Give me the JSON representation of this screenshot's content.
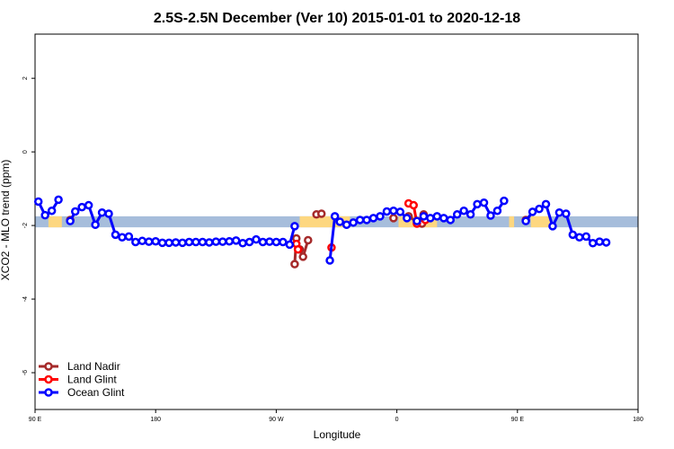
{
  "chart_data": {
    "type": "line",
    "title": "2.5S-2.5N December (Ver 10)   2015-01-01 to 2020-12-18",
    "xlabel": "Longitude",
    "ylabel": "XCO2 - MLO trend (ppm)",
    "xlim": [
      90,
      450
    ],
    "ylim": [
      -7,
      3.2
    ],
    "x_ticks": [
      {
        "value": 90,
        "label": "90 E"
      },
      {
        "value": 162,
        "label": "180"
      },
      {
        "value": 234,
        "label": "90 W"
      },
      {
        "value": 306,
        "label": "0"
      },
      {
        "value": 378,
        "label": "90 E"
      },
      {
        "value": 450,
        "label": "180"
      }
    ],
    "y_ticks": [
      {
        "value": 2,
        "label": "2"
      },
      {
        "value": 0,
        "label": "0"
      },
      {
        "value": -2,
        "label": "-2"
      },
      {
        "value": -4,
        "label": "-4"
      },
      {
        "value": -6,
        "label": "-6"
      }
    ],
    "band": {
      "y_min": -2.05,
      "y_max": -1.75,
      "ocean_color": "#a6bddb",
      "land_color": "#fdd780",
      "land_segments": [
        [
          98,
          106
        ],
        [
          248,
          278
        ],
        [
          307,
          330
        ],
        [
          373,
          376
        ],
        [
          386,
          398
        ]
      ]
    },
    "legend": {
      "position": "bottom-left",
      "entries": [
        "Land Nadir",
        "Land Glint",
        "Ocean Glint"
      ]
    },
    "series": [
      {
        "name": "Land Nadir",
        "color": "#a52a2a",
        "segments": [
          [
            [
              111,
              -1.85
            ]
          ],
          [
            [
              245,
              -3.05
            ],
            [
              246,
              -2.35
            ],
            [
              248,
              -2.65
            ],
            [
              250,
              -2.85
            ],
            [
              253,
              -2.4
            ]
          ],
          [
            [
              258,
              -1.7
            ],
            [
              261,
              -1.68
            ]
          ],
          [
            [
              304,
              -1.8
            ]
          ],
          [
            [
              313,
              -1.75
            ],
            [
              318,
              -1.9
            ],
            [
              321,
              -1.95
            ],
            [
              322,
              -1.7
            ]
          ],
          [
            [
              383,
              -1.85
            ]
          ]
        ]
      },
      {
        "name": "Land Glint",
        "color": "#ff0000",
        "segments": [
          [
            [
              246,
              -2.5
            ],
            [
              247,
              -2.65
            ]
          ],
          [
            [
              313,
              -1.4
            ],
            [
              316,
              -1.45
            ],
            [
              318,
              -1.95
            ]
          ],
          [
            [
              322,
              -1.75
            ],
            [
              323,
              -1.85
            ]
          ],
          [
            [
              267,
              -2.6
            ]
          ]
        ]
      },
      {
        "name": "Ocean Glint",
        "color": "#0000ff",
        "segments": [
          [
            [
              92,
              -1.35
            ],
            [
              96,
              -1.72
            ],
            [
              100,
              -1.6
            ],
            [
              104,
              -1.3
            ]
          ],
          [
            [
              111,
              -1.88
            ],
            [
              114,
              -1.62
            ],
            [
              118,
              -1.5
            ],
            [
              122,
              -1.45
            ],
            [
              126,
              -1.98
            ],
            [
              130,
              -1.65
            ],
            [
              134,
              -1.68
            ],
            [
              138,
              -2.25
            ],
            [
              142,
              -2.32
            ],
            [
              146,
              -2.3
            ],
            [
              150,
              -2.45
            ],
            [
              154,
              -2.42
            ],
            [
              158,
              -2.44
            ],
            [
              162,
              -2.43
            ],
            [
              166,
              -2.47
            ],
            [
              170,
              -2.47
            ],
            [
              174,
              -2.46
            ],
            [
              178,
              -2.47
            ],
            [
              182,
              -2.45
            ],
            [
              186,
              -2.45
            ],
            [
              190,
              -2.45
            ],
            [
              194,
              -2.46
            ],
            [
              198,
              -2.44
            ],
            [
              202,
              -2.44
            ],
            [
              206,
              -2.43
            ],
            [
              210,
              -2.41
            ],
            [
              214,
              -2.48
            ],
            [
              218,
              -2.45
            ],
            [
              222,
              -2.38
            ],
            [
              226,
              -2.45
            ],
            [
              230,
              -2.44
            ],
            [
              234,
              -2.45
            ],
            [
              238,
              -2.45
            ],
            [
              242,
              -2.52
            ],
            [
              245,
              -2.02
            ]
          ],
          [
            [
              266,
              -2.95
            ],
            [
              269,
              -1.75
            ],
            [
              272,
              -1.9
            ],
            [
              276,
              -1.98
            ],
            [
              280,
              -1.92
            ],
            [
              284,
              -1.85
            ],
            [
              288,
              -1.85
            ],
            [
              292,
              -1.8
            ],
            [
              296,
              -1.75
            ],
            [
              300,
              -1.62
            ],
            [
              304,
              -1.6
            ],
            [
              308,
              -1.63
            ],
            [
              312,
              -1.8
            ]
          ],
          [
            [
              318,
              -1.88
            ],
            [
              322,
              -1.75
            ],
            [
              326,
              -1.8
            ],
            [
              330,
              -1.75
            ],
            [
              334,
              -1.8
            ],
            [
              338,
              -1.85
            ],
            [
              342,
              -1.7
            ],
            [
              346,
              -1.6
            ],
            [
              350,
              -1.7
            ],
            [
              354,
              -1.42
            ],
            [
              358,
              -1.38
            ],
            [
              362,
              -1.73
            ],
            [
              366,
              -1.6
            ],
            [
              370,
              -1.33
            ]
          ],
          [
            [
              383,
              -1.88
            ],
            [
              387,
              -1.63
            ],
            [
              391,
              -1.55
            ],
            [
              395,
              -1.42
            ],
            [
              399,
              -2.02
            ],
            [
              403,
              -1.65
            ],
            [
              407,
              -1.68
            ],
            [
              411,
              -2.25
            ],
            [
              415,
              -2.32
            ],
            [
              419,
              -2.3
            ],
            [
              423,
              -2.48
            ],
            [
              427,
              -2.44
            ],
            [
              431,
              -2.46
            ]
          ]
        ]
      }
    ]
  }
}
